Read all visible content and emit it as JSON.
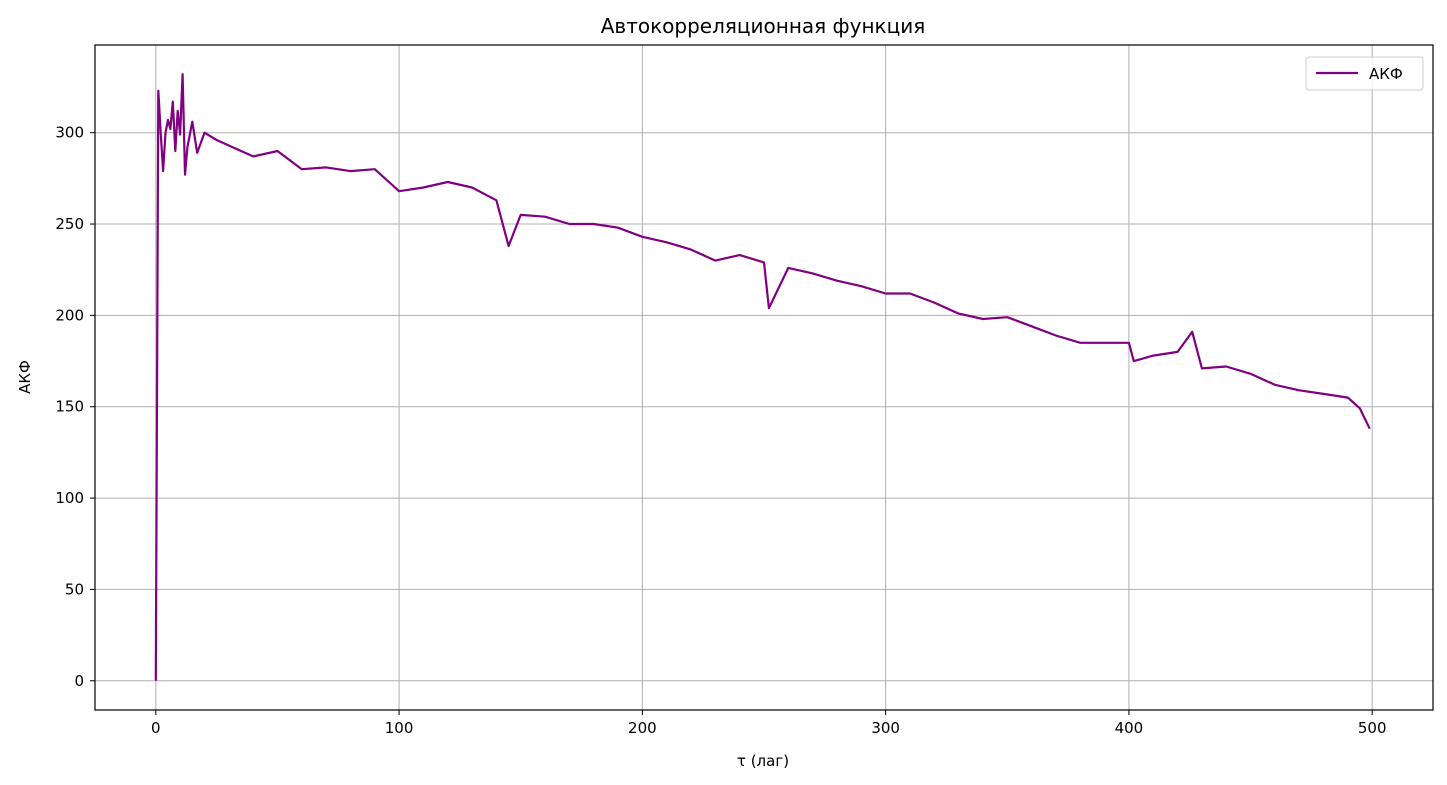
{
  "chart_data": {
    "type": "line",
    "title": "Автокорреляционная функция",
    "xlabel": "τ (лаг)",
    "ylabel": "АКФ",
    "xlim": [
      -25,
      525
    ],
    "ylim": [
      -16,
      348
    ],
    "x_ticks": [
      0,
      100,
      200,
      300,
      400,
      500
    ],
    "y_ticks": [
      0,
      50,
      100,
      150,
      200,
      250,
      300
    ],
    "grid": true,
    "legend": {
      "position": "top-right",
      "entries": [
        "АКФ"
      ]
    },
    "series": [
      {
        "name": "АКФ",
        "color": "#800080",
        "x": [
          0,
          1,
          2,
          3,
          4,
          5,
          6,
          7,
          8,
          9,
          10,
          11,
          12,
          13,
          15,
          17,
          20,
          25,
          30,
          40,
          50,
          60,
          70,
          80,
          90,
          100,
          110,
          120,
          130,
          140,
          145,
          150,
          160,
          170,
          180,
          190,
          200,
          210,
          220,
          230,
          240,
          250,
          252,
          260,
          270,
          280,
          290,
          300,
          310,
          320,
          330,
          340,
          350,
          360,
          370,
          380,
          390,
          400,
          402,
          410,
          420,
          426,
          430,
          440,
          450,
          460,
          470,
          480,
          490,
          495,
          499
        ],
        "values": [
          0,
          323,
          300,
          279,
          300,
          307,
          302,
          317,
          290,
          312,
          299,
          332,
          277,
          292,
          306,
          289,
          300,
          296,
          293,
          287,
          290,
          280,
          281,
          279,
          280,
          268,
          270,
          273,
          270,
          263,
          238,
          255,
          254,
          250,
          250,
          248,
          243,
          240,
          236,
          230,
          233,
          229,
          204,
          226,
          223,
          219,
          216,
          212,
          212,
          207,
          201,
          198,
          199,
          194,
          189,
          185,
          185,
          185,
          175,
          178,
          180,
          191,
          171,
          172,
          168,
          162,
          159,
          157,
          155,
          149,
          138
        ]
      }
    ]
  }
}
